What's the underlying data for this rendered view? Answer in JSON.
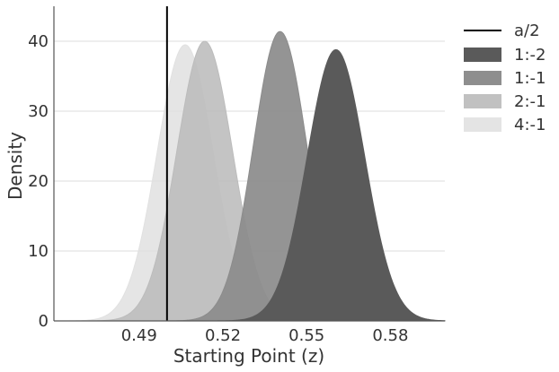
{
  "chart_data": {
    "type": "area",
    "title": "",
    "xlabel": "Starting Point (z)",
    "ylabel": "Density",
    "xlim": [
      0.4595,
      0.5995
    ],
    "ylim": [
      0,
      45
    ],
    "x_ticks": [
      0.49,
      0.52,
      0.55,
      0.58
    ],
    "x_tick_labels": [
      "0.49",
      "0.52",
      "0.55",
      "0.58"
    ],
    "y_ticks": [
      0,
      10,
      20,
      30,
      40
    ],
    "y_tick_labels": [
      "0",
      "10",
      "20",
      "30",
      "40"
    ],
    "grid": "horizontal",
    "legend_position": "outside-right",
    "reference_line": {
      "label": "a/2",
      "x": 0.5,
      "color": "#000000"
    },
    "series": [
      {
        "name": "1:-2",
        "color": "#5a5a5a",
        "opacity": 1.0,
        "peak_x": 0.5605,
        "peak_density": 38.8,
        "sd": 0.0103
      },
      {
        "name": "1:-1",
        "color": "#8c8c8c",
        "opacity": 0.93,
        "peak_x": 0.5405,
        "peak_density": 41.4,
        "sd": 0.0096
      },
      {
        "name": "2:-1",
        "color": "#bcbcbc",
        "opacity": 0.88,
        "peak_x": 0.5135,
        "peak_density": 40.0,
        "sd": 0.01
      },
      {
        "name": "4:-1",
        "color": "#e1e1e1",
        "opacity": 0.85,
        "peak_x": 0.5065,
        "peak_density": 39.5,
        "sd": 0.0101
      }
    ]
  }
}
